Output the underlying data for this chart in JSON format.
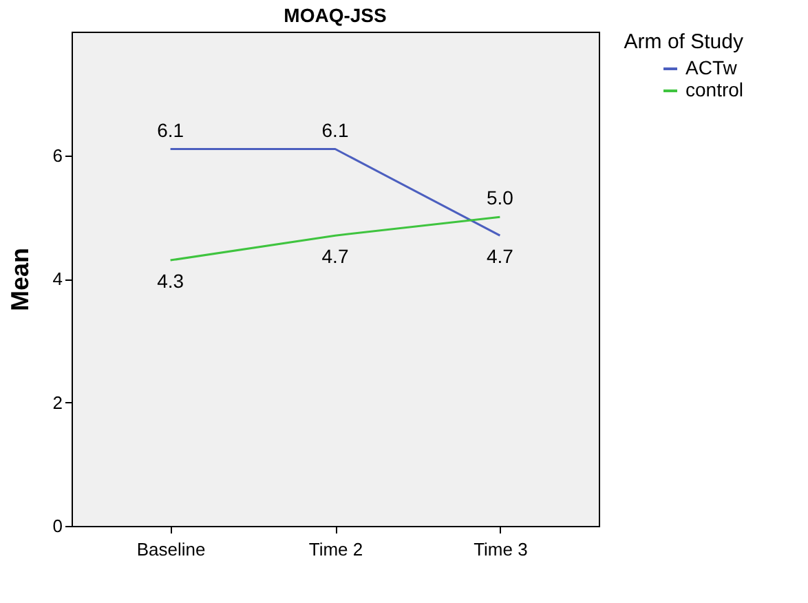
{
  "chart_data": {
    "type": "line",
    "title": "MOAQ-JSS",
    "ylabel": "Mean",
    "legend_title": "Arm of Study",
    "categories": [
      "Baseline",
      "Time 2",
      "Time 3"
    ],
    "series": [
      {
        "name": "ACTw",
        "color": "#4c5fbf",
        "values": [
          6.1,
          6.1,
          4.7
        ],
        "value_labels": [
          "6.1",
          "6.1",
          "4.7"
        ]
      },
      {
        "name": "control",
        "color": "#3fc43f",
        "values": [
          4.3,
          4.7,
          5.0
        ],
        "value_labels": [
          "4.3",
          "4.7",
          "5.0"
        ]
      }
    ],
    "ylim": [
      0,
      8
    ],
    "yticks": [
      0,
      2,
      4,
      6
    ],
    "grid": false,
    "legend": "top right",
    "marker": "none",
    "line_style": "solid"
  }
}
